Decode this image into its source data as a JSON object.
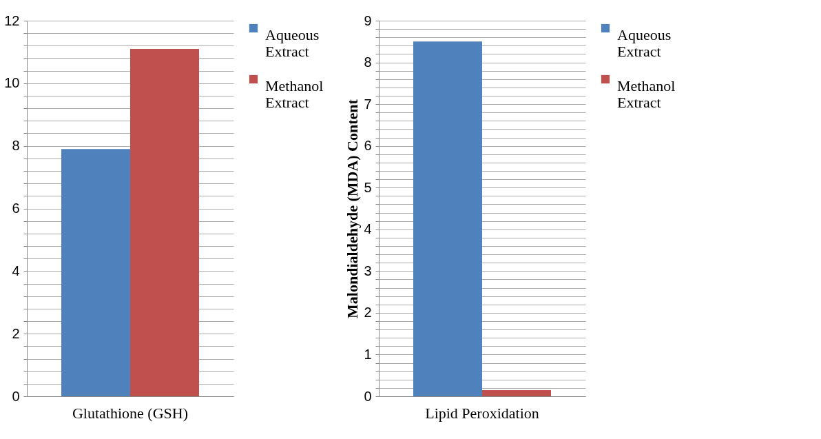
{
  "chart_data": [
    {
      "type": "bar",
      "categories": [
        "Glutathione (GSH)"
      ],
      "ylim": [
        0,
        12
      ],
      "yticks": [
        0,
        {
          "value": 0.4,
          "label": null
        },
        {
          "value": 0.8,
          "label": null
        },
        {
          "value": 1.2,
          "label": null
        },
        {
          "value": 1.6,
          "label": null
        },
        2,
        {
          "value": 2.4,
          "label": null
        },
        {
          "value": 2.8,
          "label": null
        },
        {
          "value": 3.2,
          "label": null
        },
        {
          "value": 3.6,
          "label": null
        },
        4,
        {
          "value": 4.4,
          "label": null
        },
        {
          "value": 4.8,
          "label": null
        },
        {
          "value": 5.2,
          "label": null
        },
        {
          "value": 5.6,
          "label": null
        },
        6,
        {
          "value": 6.4,
          "label": null
        },
        {
          "value": 6.8,
          "label": null
        },
        {
          "value": 7.2,
          "label": null
        },
        {
          "value": 7.6,
          "label": null
        },
        8,
        {
          "value": 8.4,
          "label": null
        },
        {
          "value": 8.8,
          "label": null
        },
        {
          "value": 9.2,
          "label": null
        },
        {
          "value": 9.6,
          "label": null
        },
        10,
        {
          "value": 10.4,
          "label": null
        },
        {
          "value": 10.8,
          "label": null
        },
        {
          "value": 11.2,
          "label": null
        },
        {
          "value": 11.6,
          "label": null
        },
        12
      ],
      "grid": "y",
      "legend": "right",
      "series": [
        {
          "name": "Aqueous Extract",
          "color": "#4f81bd",
          "values": [
            7.9
          ]
        },
        {
          "name": "Methanol Extract",
          "color": "#c0504d",
          "values": [
            11.1
          ]
        }
      ]
    },
    {
      "type": "bar",
      "categories": [
        "Lipid Peroxidation"
      ],
      "ylabel": "Malondialdehyde (MDA) Content",
      "ylim": [
        0,
        9
      ],
      "yticks": [
        0,
        {
          "value": 0.2,
          "label": null
        },
        {
          "value": 0.4,
          "label": null
        },
        {
          "value": 0.6,
          "label": null
        },
        {
          "value": 0.8,
          "label": null
        },
        1,
        {
          "value": 1.2,
          "label": null
        },
        {
          "value": 1.4,
          "label": null
        },
        {
          "value": 1.6,
          "label": null
        },
        {
          "value": 1.8,
          "label": null
        },
        2,
        {
          "value": 2.2,
          "label": null
        },
        {
          "value": 2.4,
          "label": null
        },
        {
          "value": 2.6,
          "label": null
        },
        {
          "value": 2.8,
          "label": null
        },
        3,
        {
          "value": 3.2,
          "label": null
        },
        {
          "value": 3.4,
          "label": null
        },
        {
          "value": 3.6,
          "label": null
        },
        {
          "value": 3.8,
          "label": null
        },
        4,
        {
          "value": 4.2,
          "label": null
        },
        {
          "value": 4.4,
          "label": null
        },
        {
          "value": 4.6,
          "label": null
        },
        {
          "value": 4.8,
          "label": null
        },
        5,
        {
          "value": 5.2,
          "label": null
        },
        {
          "value": 5.4,
          "label": null
        },
        {
          "value": 5.6,
          "label": null
        },
        {
          "value": 5.8,
          "label": null
        },
        6,
        {
          "value": 6.2,
          "label": null
        },
        {
          "value": 6.4,
          "label": null
        },
        {
          "value": 6.6,
          "label": null
        },
        {
          "value": 6.8,
          "label": null
        },
        7,
        {
          "value": 7.2,
          "label": null
        },
        {
          "value": 7.4,
          "label": null
        },
        {
          "value": 7.6,
          "label": null
        },
        {
          "value": 7.8,
          "label": null
        },
        8,
        {
          "value": 8.2,
          "label": null
        },
        {
          "value": 8.4,
          "label": null
        },
        {
          "value": 8.6,
          "label": null
        },
        {
          "value": 8.8,
          "label": null
        },
        9
      ],
      "grid": "y",
      "legend": "right",
      "series": [
        {
          "name": "Aqueous Extract",
          "color": "#4f81bd",
          "values": [
            8.5
          ]
        },
        {
          "name": "Methanol Extract",
          "color": "#c0504d",
          "values": [
            0.15
          ]
        }
      ]
    }
  ]
}
